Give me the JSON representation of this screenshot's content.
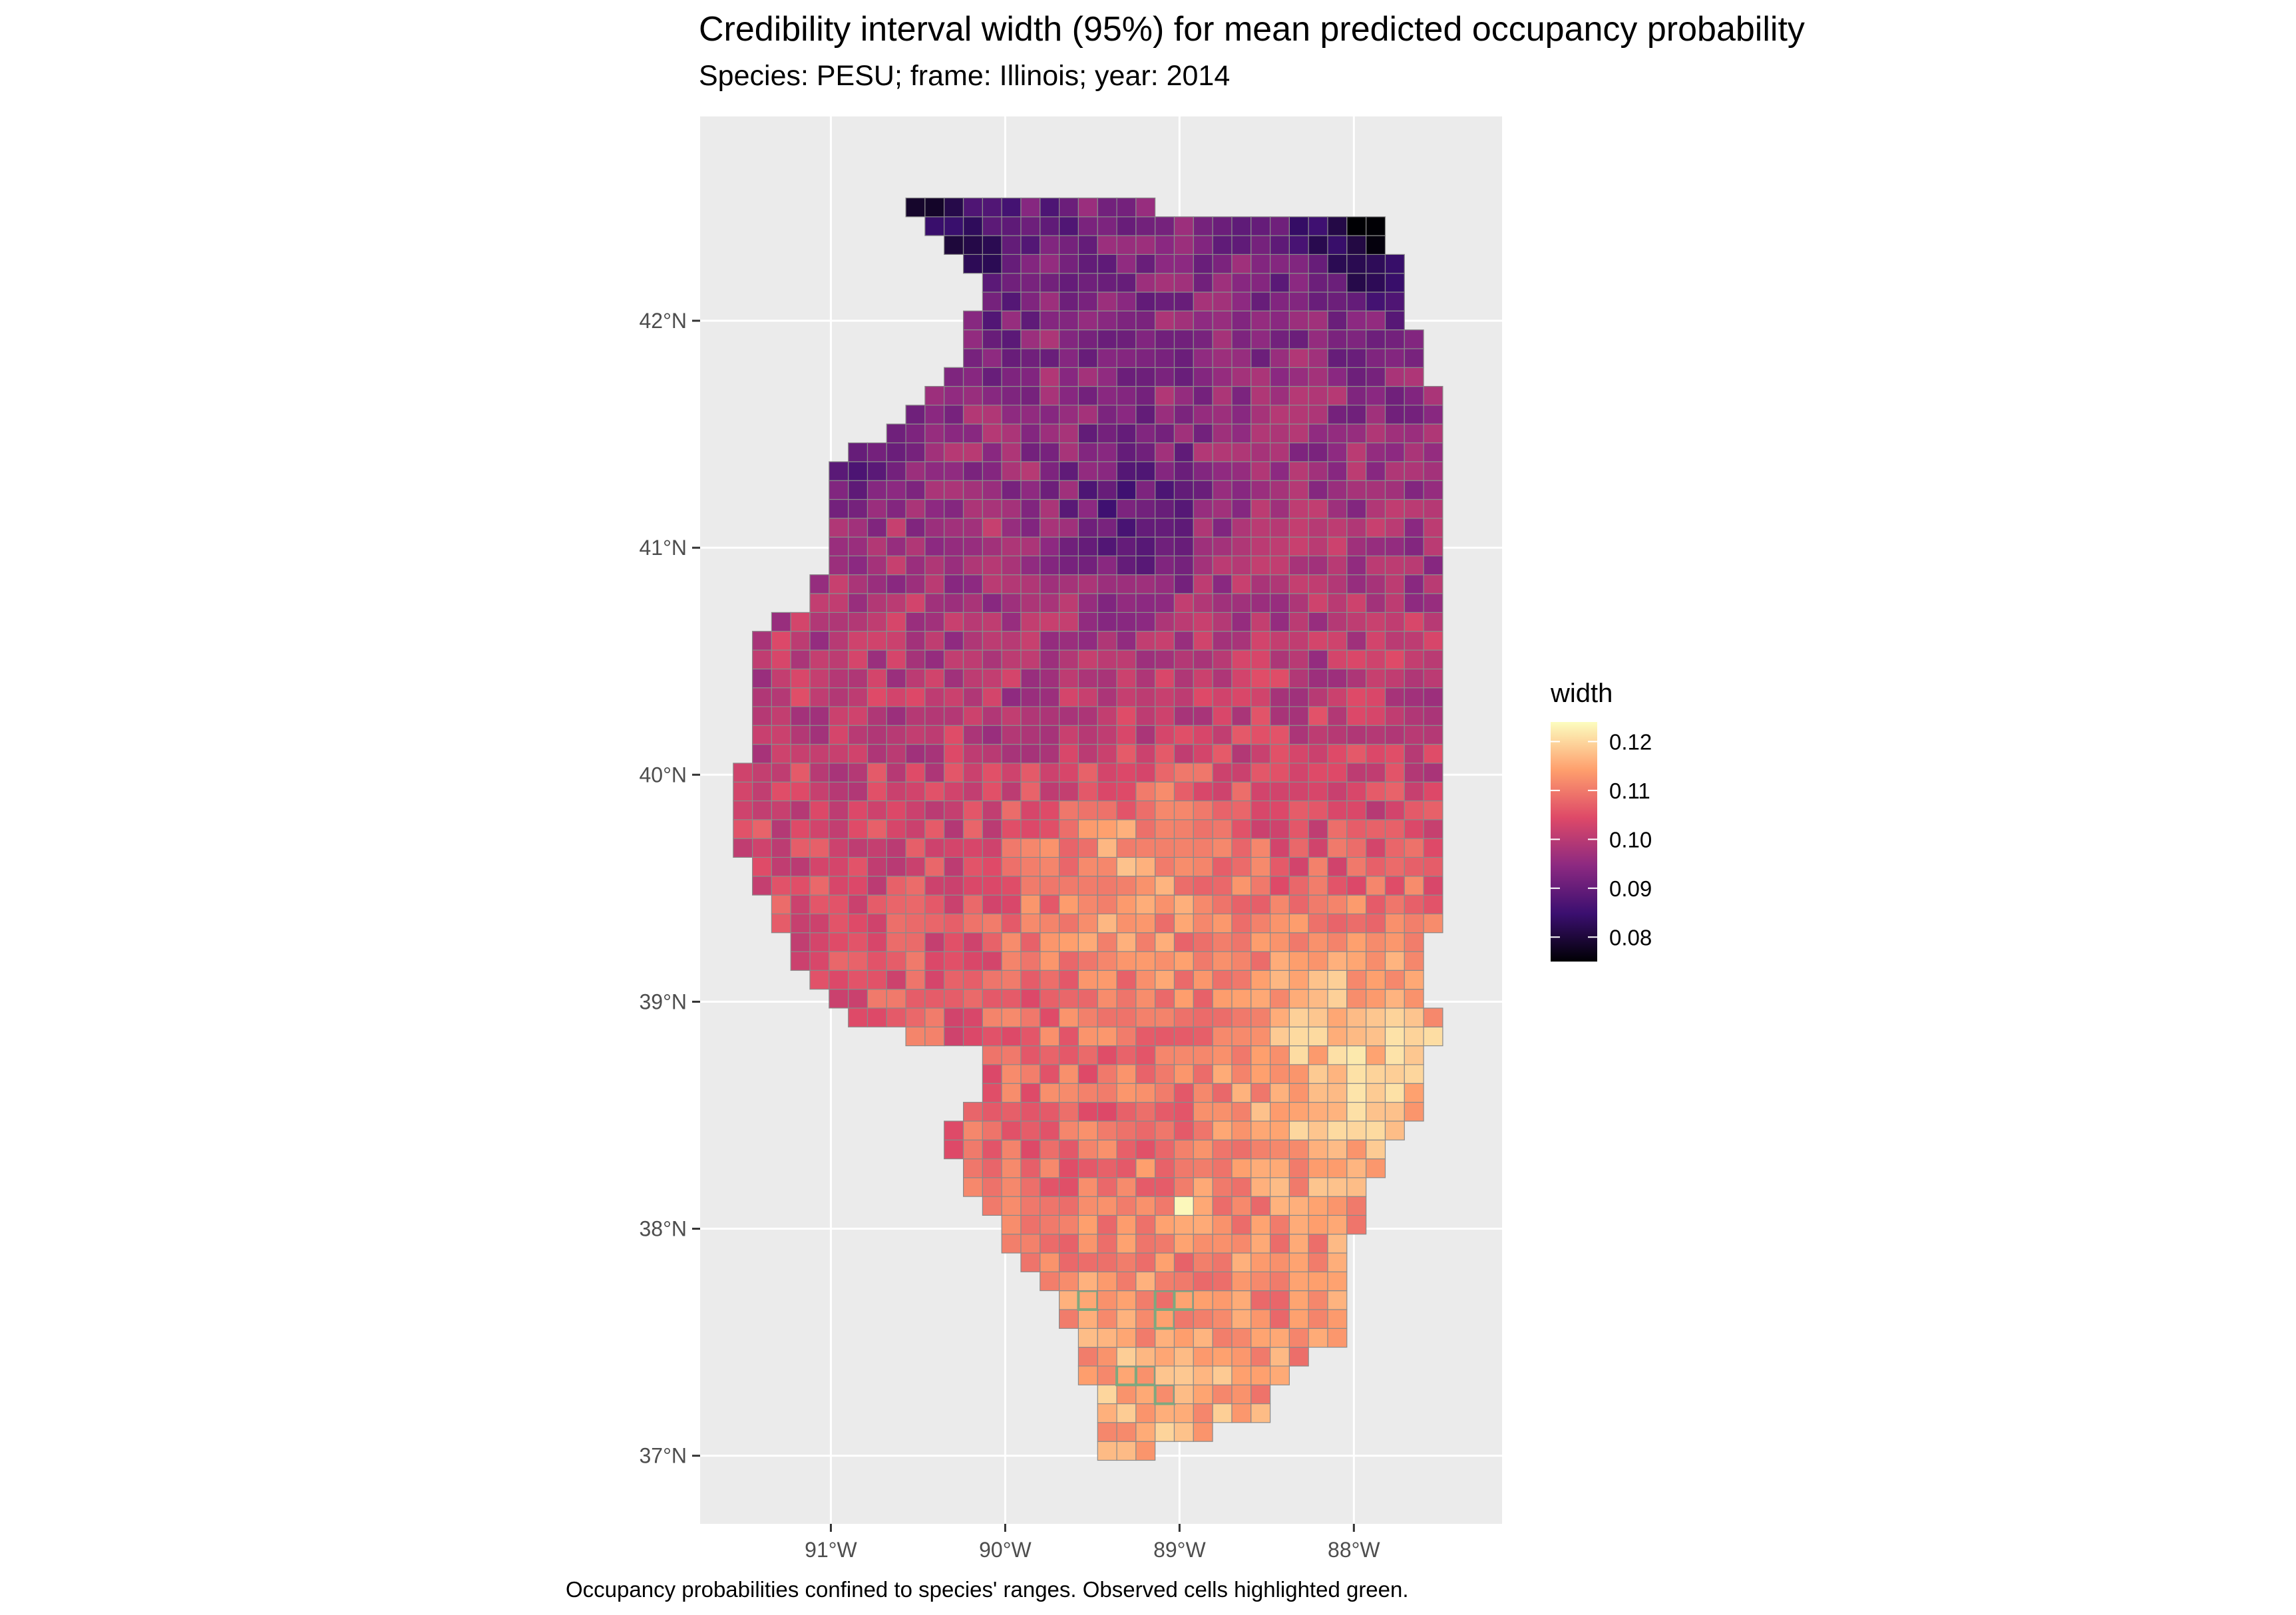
{
  "page": {
    "title": "Credibility interval width (95%) for mean predicted occupancy probability",
    "subtitle": "Species: PESU; frame: Illinois; year: 2014",
    "caption": "Occupancy probabilities confined to species' ranges. Observed cells highlighted green."
  },
  "chart_data": {
    "type": "heatmap",
    "title": "Credibility interval width (95%) for mean predicted occupancy probability",
    "subtitle": "Species: PESU; frame: Illinois; year: 2014",
    "xlabel": "",
    "ylabel": "",
    "x_ticks": [
      {
        "value": -91,
        "label": "91°W"
      },
      {
        "value": -90,
        "label": "90°W"
      },
      {
        "value": -89,
        "label": "89°W"
      },
      {
        "value": -88,
        "label": "88°W"
      }
    ],
    "y_ticks": [
      {
        "value": 37,
        "label": "37°N"
      },
      {
        "value": 38,
        "label": "38°N"
      },
      {
        "value": 39,
        "label": "39°N"
      },
      {
        "value": 40,
        "label": "40°N"
      },
      {
        "value": 41,
        "label": "41°N"
      },
      {
        "value": 42,
        "label": "42°N"
      }
    ],
    "xlim": [
      -91.75,
      -87.15
    ],
    "ylim": [
      36.7,
      42.9
    ],
    "grid": true,
    "legend": {
      "title": "width",
      "placement": "right",
      "ticks": [
        0.08,
        0.09,
        0.1,
        0.11,
        0.12
      ],
      "range": [
        0.075,
        0.124
      ],
      "colors": [
        "#000004",
        "#3b0f70",
        "#8c2981",
        "#de4968",
        "#fe9f6d",
        "#fcfdbf"
      ]
    },
    "cell_size_deg": [
      0.11,
      0.083
    ],
    "outline_lon_lat": [
      [
        -90.64,
        42.51
      ],
      [
        -87.8,
        42.49
      ],
      [
        -87.75,
        42.15
      ],
      [
        -87.55,
        41.76
      ],
      [
        -87.53,
        41.47
      ],
      [
        -87.53,
        39.35
      ],
      [
        -87.62,
        39.1
      ],
      [
        -87.53,
        38.9
      ],
      [
        -87.6,
        38.55
      ],
      [
        -87.85,
        38.3
      ],
      [
        -87.95,
        38.05
      ],
      [
        -88.05,
        37.8
      ],
      [
        -88.05,
        37.5
      ],
      [
        -88.4,
        37.4
      ],
      [
        -88.55,
        37.12
      ],
      [
        -88.9,
        37.1
      ],
      [
        -89.15,
        37.0
      ],
      [
        -89.45,
        36.98
      ],
      [
        -89.5,
        37.25
      ],
      [
        -89.6,
        37.55
      ],
      [
        -89.8,
        37.8
      ],
      [
        -90.0,
        37.95
      ],
      [
        -90.25,
        38.2
      ],
      [
        -90.35,
        38.4
      ],
      [
        -90.15,
        38.6
      ],
      [
        -90.15,
        38.8
      ],
      [
        -90.55,
        38.85
      ],
      [
        -90.95,
        38.95
      ],
      [
        -91.2,
        39.2
      ],
      [
        -91.45,
        39.5
      ],
      [
        -91.55,
        39.8
      ],
      [
        -91.5,
        40.1
      ],
      [
        -91.45,
        40.4
      ],
      [
        -91.4,
        40.6
      ],
      [
        -91.1,
        40.8
      ],
      [
        -91.0,
        41.1
      ],
      [
        -90.95,
        41.4
      ],
      [
        -90.6,
        41.55
      ],
      [
        -90.35,
        41.75
      ],
      [
        -90.2,
        41.95
      ],
      [
        -90.15,
        42.15
      ],
      [
        -90.4,
        42.4
      ],
      [
        -90.64,
        42.51
      ]
    ],
    "width_zones": [
      {
        "lon": -87.9,
        "lat": 42.4,
        "value": 0.076,
        "radius": 0.25
      },
      {
        "lon": -90.4,
        "lat": 42.35,
        "value": 0.08,
        "radius": 0.3
      },
      {
        "lon": -91.0,
        "lat": 41.55,
        "value": 0.083,
        "radius": 0.25
      },
      {
        "lon": -89.3,
        "lat": 41.15,
        "value": 0.088,
        "radius": 0.3
      },
      {
        "lon": -89.6,
        "lat": 40.2,
        "value": 0.097,
        "radius": 0.45
      },
      {
        "lon": -87.9,
        "lat": 38.7,
        "value": 0.119,
        "radius": 0.6
      },
      {
        "lon": -89.3,
        "lat": 39.5,
        "value": 0.114,
        "radius": 0.5
      },
      {
        "lon": -89.2,
        "lat": 37.2,
        "value": 0.116,
        "radius": 0.4
      },
      {
        "lon": -88.97,
        "lat": 38.12,
        "value": 0.124,
        "radius": 0.05
      }
    ],
    "observed_cells": [
      {
        "lon": -89.12,
        "lat": 37.7
      },
      {
        "lon": -89.0,
        "lat": 37.7
      },
      {
        "lon": -89.12,
        "lat": 37.62
      },
      {
        "lon": -89.25,
        "lat": 37.33
      },
      {
        "lon": -89.12,
        "lat": 37.25
      },
      {
        "lon": -89.5,
        "lat": 37.7
      }
    ],
    "highlight_color": "#7fa87f"
  }
}
